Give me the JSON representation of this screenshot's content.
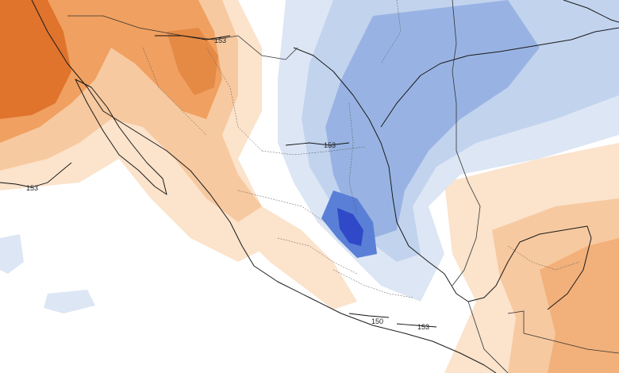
{
  "map": {
    "colors": {
      "warm_strong": "#e0742c",
      "warm_mid": "#f0a060",
      "warm_light": "#f7c9a0",
      "warm_faint": "#fbe3cc",
      "neutral": "#ffffff",
      "cool_faint": "#dde6f4",
      "cool_light": "#c2d3ee",
      "cool_mid": "#98b3e3",
      "cool_strong": "#5a7fd6",
      "cool_deep": "#2f49c8",
      "line": "#1a1a1a"
    },
    "contour_labels": [
      {
        "id": "label-153-north",
        "text": "153"
      },
      {
        "id": "label-153-west",
        "text": "153"
      },
      {
        "id": "label-153-central",
        "text": "153"
      },
      {
        "id": "label-150-south",
        "text": "150"
      },
      {
        "id": "label-153-south",
        "text": "153"
      }
    ]
  }
}
